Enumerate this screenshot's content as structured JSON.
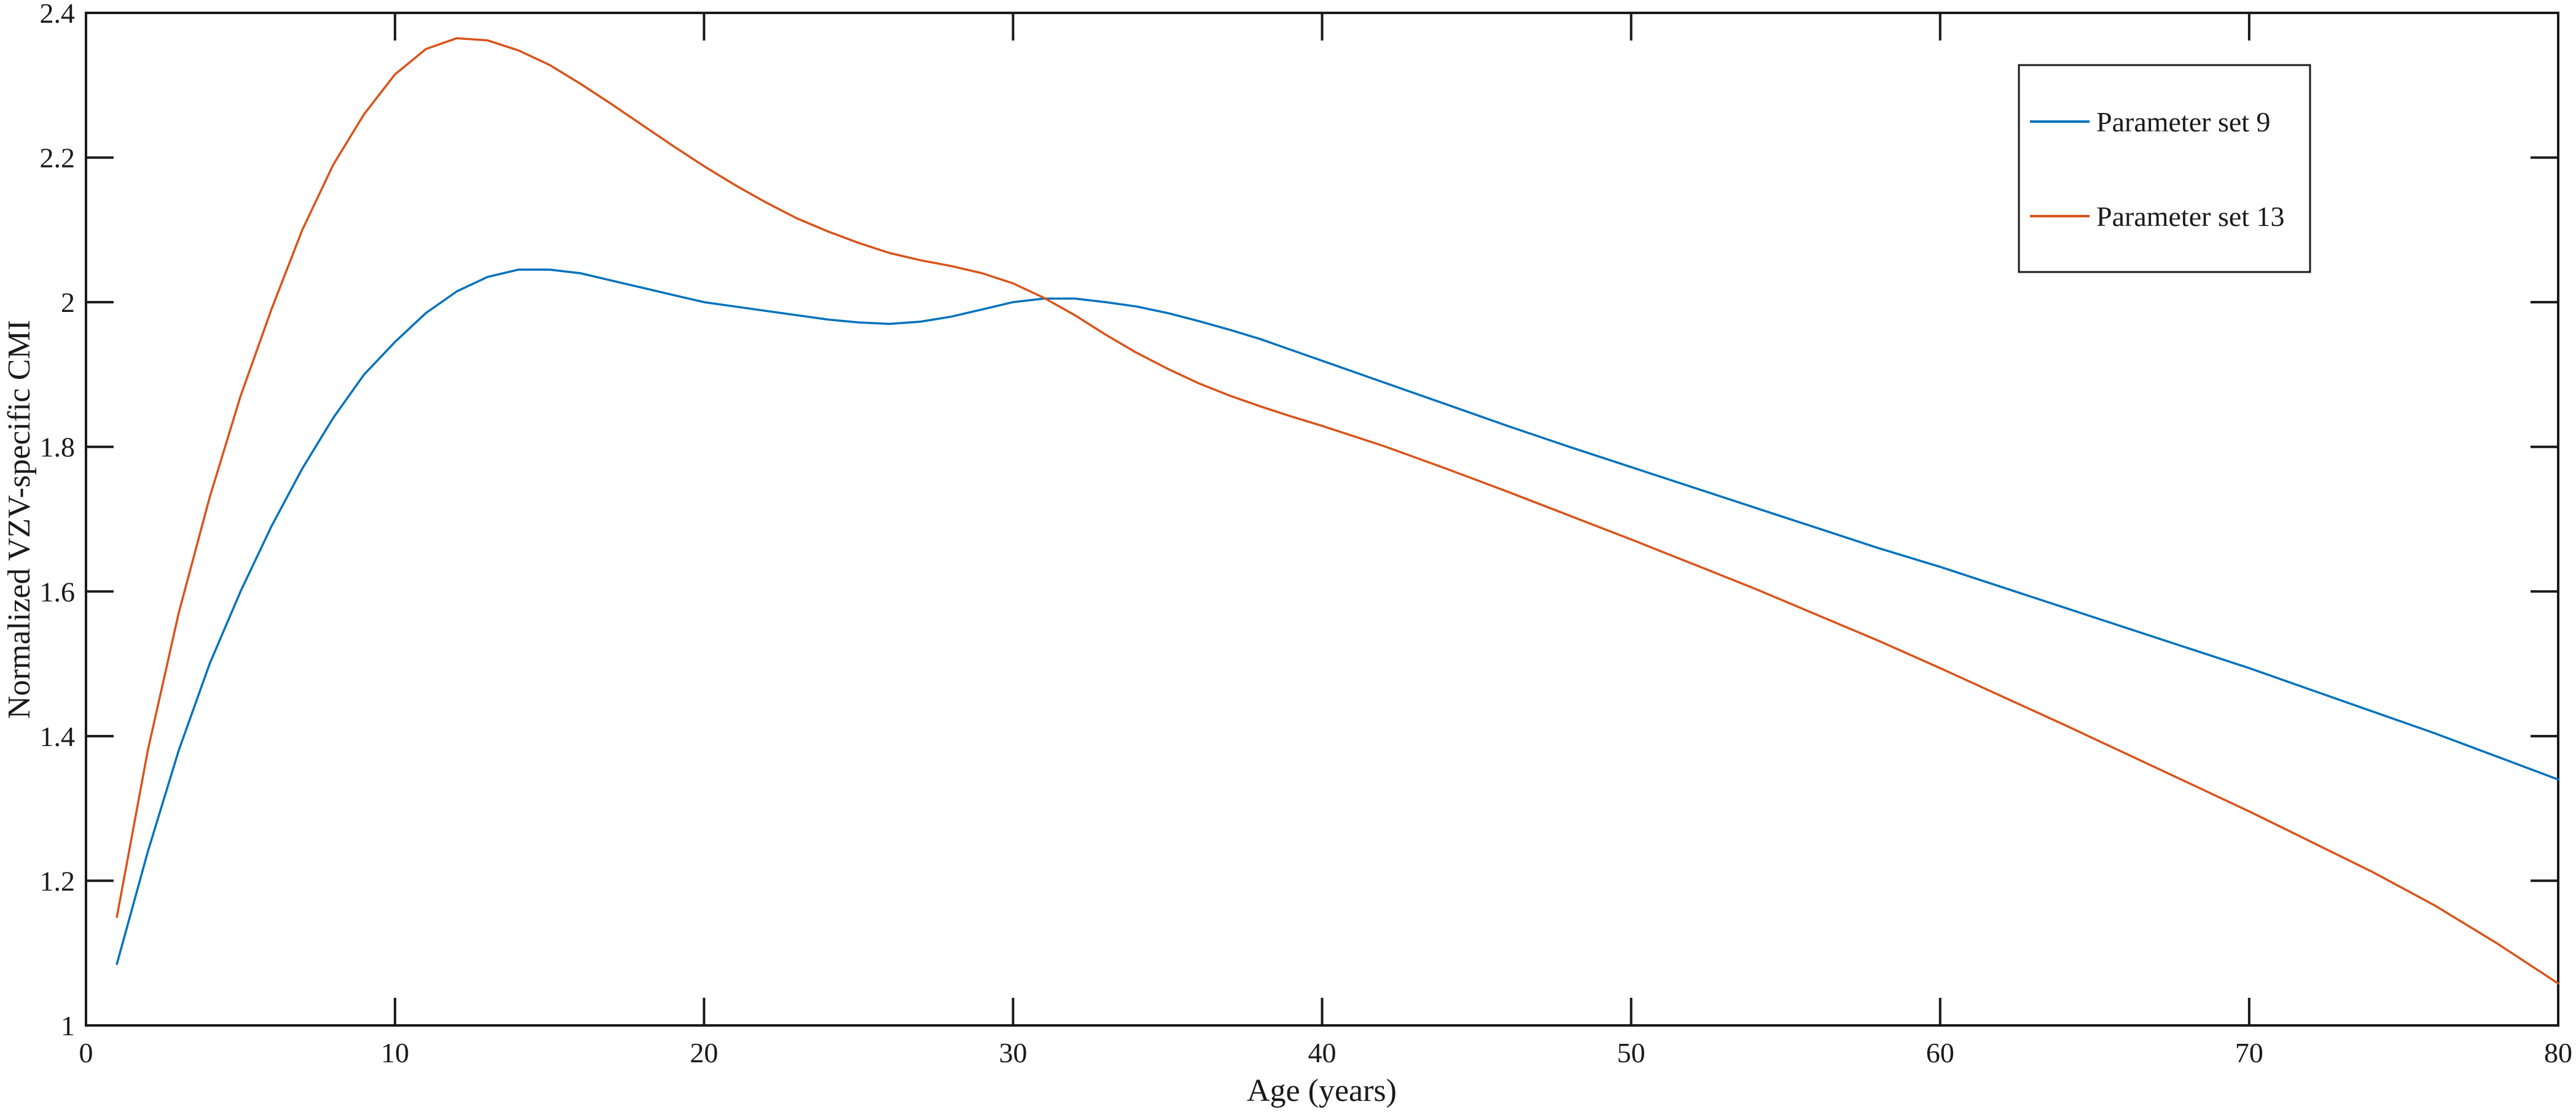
{
  "figure": {
    "xlabel": "Age (years)",
    "ylabel": "Normalized VZV-specific CMI"
  },
  "legend": {
    "position": "upper right",
    "entries": [
      {
        "label": "Parameter set 9",
        "color": "#0072BD"
      },
      {
        "label": "Parameter set 13",
        "color": "#D95319"
      }
    ]
  },
  "chart_data": {
    "type": "line",
    "title": "",
    "xlabel": "Age (years)",
    "ylabel": "Normalized VZV-specific CMI",
    "xlim": [
      0,
      80
    ],
    "ylim": [
      1,
      2.4
    ],
    "x_ticks": [
      0,
      10,
      20,
      30,
      40,
      50,
      60,
      70,
      80
    ],
    "x_tick_labels": [
      "0",
      "10",
      "20",
      "30",
      "40",
      "50",
      "60",
      "70",
      "80"
    ],
    "y_ticks": [
      1,
      1.2,
      1.4,
      1.6,
      1.8,
      2,
      2.2,
      2.4
    ],
    "y_tick_labels": [
      "1",
      "1.2",
      "1.4",
      "1.6",
      "1.8",
      "2",
      "2.2",
      "2.4"
    ],
    "grid": false,
    "legend_position": "upper right",
    "axis_color": "#1a1a1a",
    "background_color": "#ffffff",
    "series": [
      {
        "name": "Parameter set 9",
        "color": "#0072BD",
        "points": [
          [
            1,
            1.085
          ],
          [
            2,
            1.24
          ],
          [
            3,
            1.38
          ],
          [
            4,
            1.5
          ],
          [
            5,
            1.6
          ],
          [
            6,
            1.69
          ],
          [
            7,
            1.77
          ],
          [
            8,
            1.84
          ],
          [
            9,
            1.9
          ],
          [
            10,
            1.945
          ],
          [
            11,
            1.985
          ],
          [
            12,
            2.015
          ],
          [
            13,
            2.035
          ],
          [
            14,
            2.045
          ],
          [
            15,
            2.045
          ],
          [
            16,
            2.04
          ],
          [
            17,
            2.03
          ],
          [
            18,
            2.02
          ],
          [
            19,
            2.01
          ],
          [
            20,
            2.0
          ],
          [
            21,
            1.994
          ],
          [
            22,
            1.988
          ],
          [
            23,
            1.982
          ],
          [
            24,
            1.976
          ],
          [
            25,
            1.972
          ],
          [
            26,
            1.97
          ],
          [
            27,
            1.973
          ],
          [
            28,
            1.98
          ],
          [
            29,
            1.99
          ],
          [
            30,
            2.0
          ],
          [
            31,
            2.005
          ],
          [
            32,
            2.005
          ],
          [
            33,
            2.0
          ],
          [
            34,
            1.994
          ],
          [
            35,
            1.985
          ],
          [
            36,
            1.974
          ],
          [
            37,
            1.962
          ],
          [
            38,
            1.949
          ],
          [
            39,
            1.934
          ],
          [
            40,
            1.919
          ],
          [
            42,
            1.889
          ],
          [
            44,
            1.859
          ],
          [
            46,
            1.829
          ],
          [
            48,
            1.8
          ],
          [
            50,
            1.772
          ],
          [
            52,
            1.744
          ],
          [
            54,
            1.716
          ],
          [
            56,
            1.688
          ],
          [
            58,
            1.66
          ],
          [
            60,
            1.634
          ],
          [
            62,
            1.606
          ],
          [
            64,
            1.578
          ],
          [
            66,
            1.55
          ],
          [
            68,
            1.522
          ],
          [
            70,
            1.494
          ],
          [
            72,
            1.464
          ],
          [
            74,
            1.434
          ],
          [
            76,
            1.404
          ],
          [
            78,
            1.372
          ],
          [
            80,
            1.34
          ]
        ]
      },
      {
        "name": "Parameter set 13",
        "color": "#D95319",
        "points": [
          [
            1,
            1.15
          ],
          [
            2,
            1.38
          ],
          [
            3,
            1.57
          ],
          [
            4,
            1.73
          ],
          [
            5,
            1.87
          ],
          [
            6,
            1.99
          ],
          [
            7,
            2.1
          ],
          [
            8,
            2.19
          ],
          [
            9,
            2.26
          ],
          [
            10,
            2.315
          ],
          [
            11,
            2.35
          ],
          [
            12,
            2.365
          ],
          [
            13,
            2.362
          ],
          [
            14,
            2.348
          ],
          [
            15,
            2.328
          ],
          [
            16,
            2.302
          ],
          [
            17,
            2.274
          ],
          [
            18,
            2.245
          ],
          [
            19,
            2.216
          ],
          [
            20,
            2.188
          ],
          [
            21,
            2.162
          ],
          [
            22,
            2.138
          ],
          [
            23,
            2.116
          ],
          [
            24,
            2.098
          ],
          [
            25,
            2.082
          ],
          [
            26,
            2.068
          ],
          [
            27,
            2.058
          ],
          [
            28,
            2.05
          ],
          [
            29,
            2.04
          ],
          [
            30,
            2.026
          ],
          [
            31,
            2.006
          ],
          [
            32,
            1.982
          ],
          [
            33,
            1.955
          ],
          [
            34,
            1.93
          ],
          [
            35,
            1.908
          ],
          [
            36,
            1.888
          ],
          [
            37,
            1.871
          ],
          [
            38,
            1.856
          ],
          [
            39,
            1.842
          ],
          [
            40,
            1.829
          ],
          [
            42,
            1.801
          ],
          [
            44,
            1.77
          ],
          [
            46,
            1.738
          ],
          [
            48,
            1.705
          ],
          [
            50,
            1.672
          ],
          [
            52,
            1.638
          ],
          [
            54,
            1.604
          ],
          [
            56,
            1.568
          ],
          [
            58,
            1.532
          ],
          [
            60,
            1.494
          ],
          [
            62,
            1.455
          ],
          [
            64,
            1.416
          ],
          [
            66,
            1.376
          ],
          [
            68,
            1.336
          ],
          [
            70,
            1.296
          ],
          [
            72,
            1.254
          ],
          [
            74,
            1.212
          ],
          [
            76,
            1.166
          ],
          [
            78,
            1.114
          ],
          [
            80,
            1.058
          ]
        ]
      }
    ]
  }
}
